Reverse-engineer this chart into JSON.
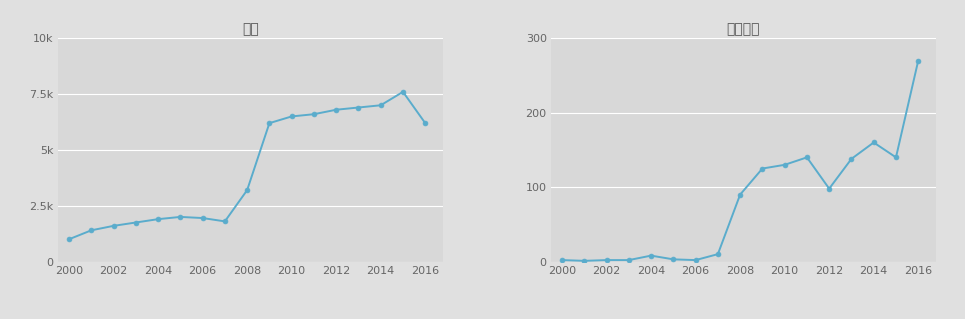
{
  "title_left": "한식",
  "title_right": "한식문화",
  "years": [
    2000,
    2001,
    2002,
    2003,
    2004,
    2005,
    2006,
    2007,
    2008,
    2009,
    2010,
    2011,
    2012,
    2013,
    2014,
    2015,
    2016
  ],
  "values_left": [
    1000,
    1400,
    1600,
    1750,
    1900,
    2000,
    1950,
    1800,
    3200,
    6200,
    6500,
    6600,
    6800,
    6900,
    7000,
    7600,
    6200
  ],
  "values_right": [
    2,
    1,
    2,
    2,
    8,
    3,
    2,
    10,
    90,
    125,
    130,
    140,
    98,
    138,
    160,
    140,
    270
  ],
  "xlim": [
    1999.5,
    2016.8
  ],
  "ylim_left": [
    0,
    10000
  ],
  "ylim_right": [
    0,
    300
  ],
  "yticks_left": [
    0,
    2500,
    5000,
    7500,
    10000
  ],
  "ytick_labels_left": [
    "0",
    "2.5k",
    "5k",
    "7.5k",
    "10k"
  ],
  "yticks_right": [
    0,
    100,
    200,
    300
  ],
  "ytick_labels_right": [
    "0",
    "100",
    "200",
    "300"
  ],
  "xticks": [
    2000,
    2002,
    2004,
    2006,
    2008,
    2010,
    2012,
    2014,
    2016
  ],
  "line_color": "#5aaccc",
  "marker_color": "#5aaccc",
  "bg_color": "#d8d8d8",
  "fig_bg_color": "#e0e0e0",
  "title_fontsize": 10,
  "tick_fontsize": 8,
  "grid_color": "#c0c0c0"
}
